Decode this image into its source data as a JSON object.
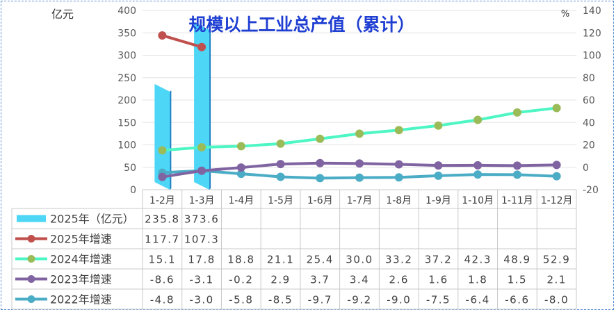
{
  "chart_data": {
    "type": "combo-bar-line-with-table",
    "title": "规模以上工业总产值（累计）",
    "left_axis": {
      "unit_label": "亿元",
      "ylim": [
        0,
        400
      ],
      "ticks": [
        0,
        50,
        100,
        150,
        200,
        250,
        300,
        350,
        400
      ]
    },
    "right_axis": {
      "unit_label": "%",
      "ylim": [
        -20,
        140
      ],
      "ticks": [
        -20,
        0,
        20,
        40,
        60,
        80,
        100,
        120,
        140
      ]
    },
    "categories": [
      "1-2月",
      "1-3月",
      "1-4月",
      "1-5月",
      "1-6月",
      "1-7月",
      "1-8月",
      "1-9月",
      "1-10月",
      "1-11月",
      "1-12月"
    ],
    "bar_series": {
      "name": "2025年（亿元）",
      "axis": "left",
      "color": "#4dd6f6",
      "values": [
        235.8,
        373.6
      ]
    },
    "line_series": [
      {
        "name": "2025年增速",
        "axis": "right",
        "color": "#c0504d",
        "values": [
          117.7,
          107.3
        ]
      },
      {
        "name": "2024年增速",
        "axis": "right",
        "color": "#4ef6c4",
        "marker_color": "#9bbb59",
        "values": [
          15.1,
          17.8,
          18.8,
          21.1,
          25.4,
          30.0,
          33.2,
          37.2,
          42.3,
          48.9,
          52.9
        ]
      },
      {
        "name": "2023年增速",
        "axis": "right",
        "color": "#8064a2",
        "values": [
          -8.6,
          -3.1,
          -0.2,
          2.9,
          3.7,
          3.4,
          2.6,
          1.6,
          1.8,
          1.5,
          2.1
        ]
      },
      {
        "name": "2022年增速",
        "axis": "right",
        "color": "#4bacc6",
        "values": [
          -4.8,
          -3.0,
          -5.8,
          -8.5,
          -9.7,
          -9.2,
          -9.0,
          -7.5,
          -6.4,
          -6.6,
          -8.0
        ]
      }
    ],
    "table": {
      "rows": [
        {
          "label": "2025年（亿元）",
          "cells": [
            "235.8",
            "373.6",
            "",
            "",
            "",
            "",
            "",
            "",
            "",
            "",
            ""
          ]
        },
        {
          "label": "2025年增速",
          "cells": [
            "117.7",
            "107.3",
            "",
            "",
            "",
            "",
            "",
            "",
            "",
            "",
            ""
          ]
        },
        {
          "label": "2024年增速",
          "cells": [
            "15.1",
            "17.8",
            "18.8",
            "21.1",
            "25.4",
            "30.0",
            "33.2",
            "37.2",
            "42.3",
            "48.9",
            "52.9"
          ]
        },
        {
          "label": "2023年增速",
          "cells": [
            "-8.6",
            "-3.1",
            "-0.2",
            "2.9",
            "3.7",
            "3.4",
            "2.6",
            "1.6",
            "1.8",
            "1.5",
            "2.1"
          ]
        },
        {
          "label": "2022年增速",
          "cells": [
            "-4.8",
            "-3.0",
            "-5.8",
            "-8.5",
            "-9.7",
            "-9.2",
            "-9.0",
            "-7.5",
            "-6.4",
            "-6.6",
            "-8.0"
          ]
        }
      ]
    },
    "grid": true,
    "title_color": "#1f3fd2",
    "legend": "data-table"
  }
}
